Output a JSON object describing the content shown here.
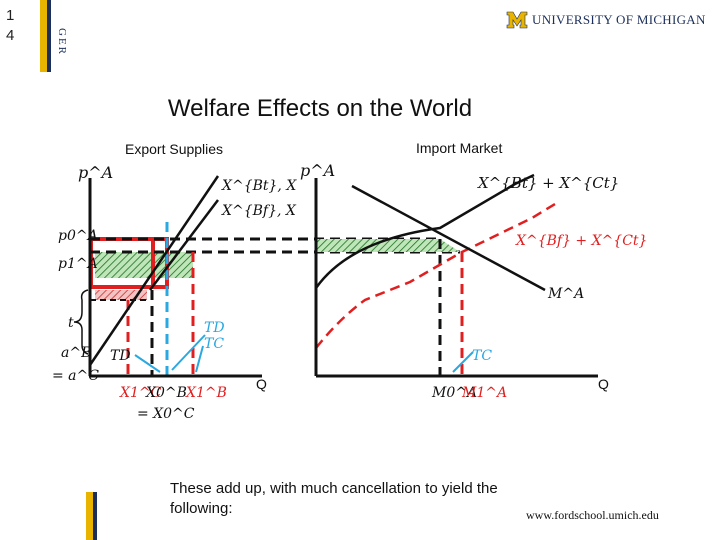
{
  "slide_number": [
    "1",
    "4"
  ],
  "side_label": "GER",
  "logo": {
    "mark": "M",
    "text": "UNIVERSITY OF MICHIGAN"
  },
  "title": "Welfare Effects on the World",
  "left_panel": {
    "heading": "Export Supplies",
    "y_axis": "p^A",
    "q_axis": "Q",
    "labels": {
      "p0": "p0^A",
      "p1": "p1^A",
      "t": "t",
      "aB": "a^B",
      "eq_aC": "= a^C",
      "XBt": "X^{Bt}, X",
      "XBf": "X^{Bf}, X",
      "TD_left": "TD",
      "TD_right": "TD",
      "TC_right": "TC",
      "X1C": "X1^C",
      "X0B": "X0^B",
      "X1B": "X1^B",
      "eq_X0C": "= X0^C"
    }
  },
  "right_panel": {
    "heading": "Import Market",
    "y_axis": "p^A",
    "q_axis": "Q",
    "labels": {
      "supply_top": "X^{Bt} + X^{Ct}",
      "supply_red": "X^{Bf} + X^{Ct}",
      "demand": "M^A",
      "TC": "TC",
      "M0": "M0^A",
      "M1": "M1^A"
    }
  },
  "footer_text": "These add up, with much cancellation to yield the following:",
  "url": "www.fordschool.umich.edu",
  "colors": {
    "red": "#e02020",
    "blue": "#2aa8e0",
    "green": "#1f8a2a",
    "navy": "#1b2f5a",
    "maize": "#e8b400"
  }
}
